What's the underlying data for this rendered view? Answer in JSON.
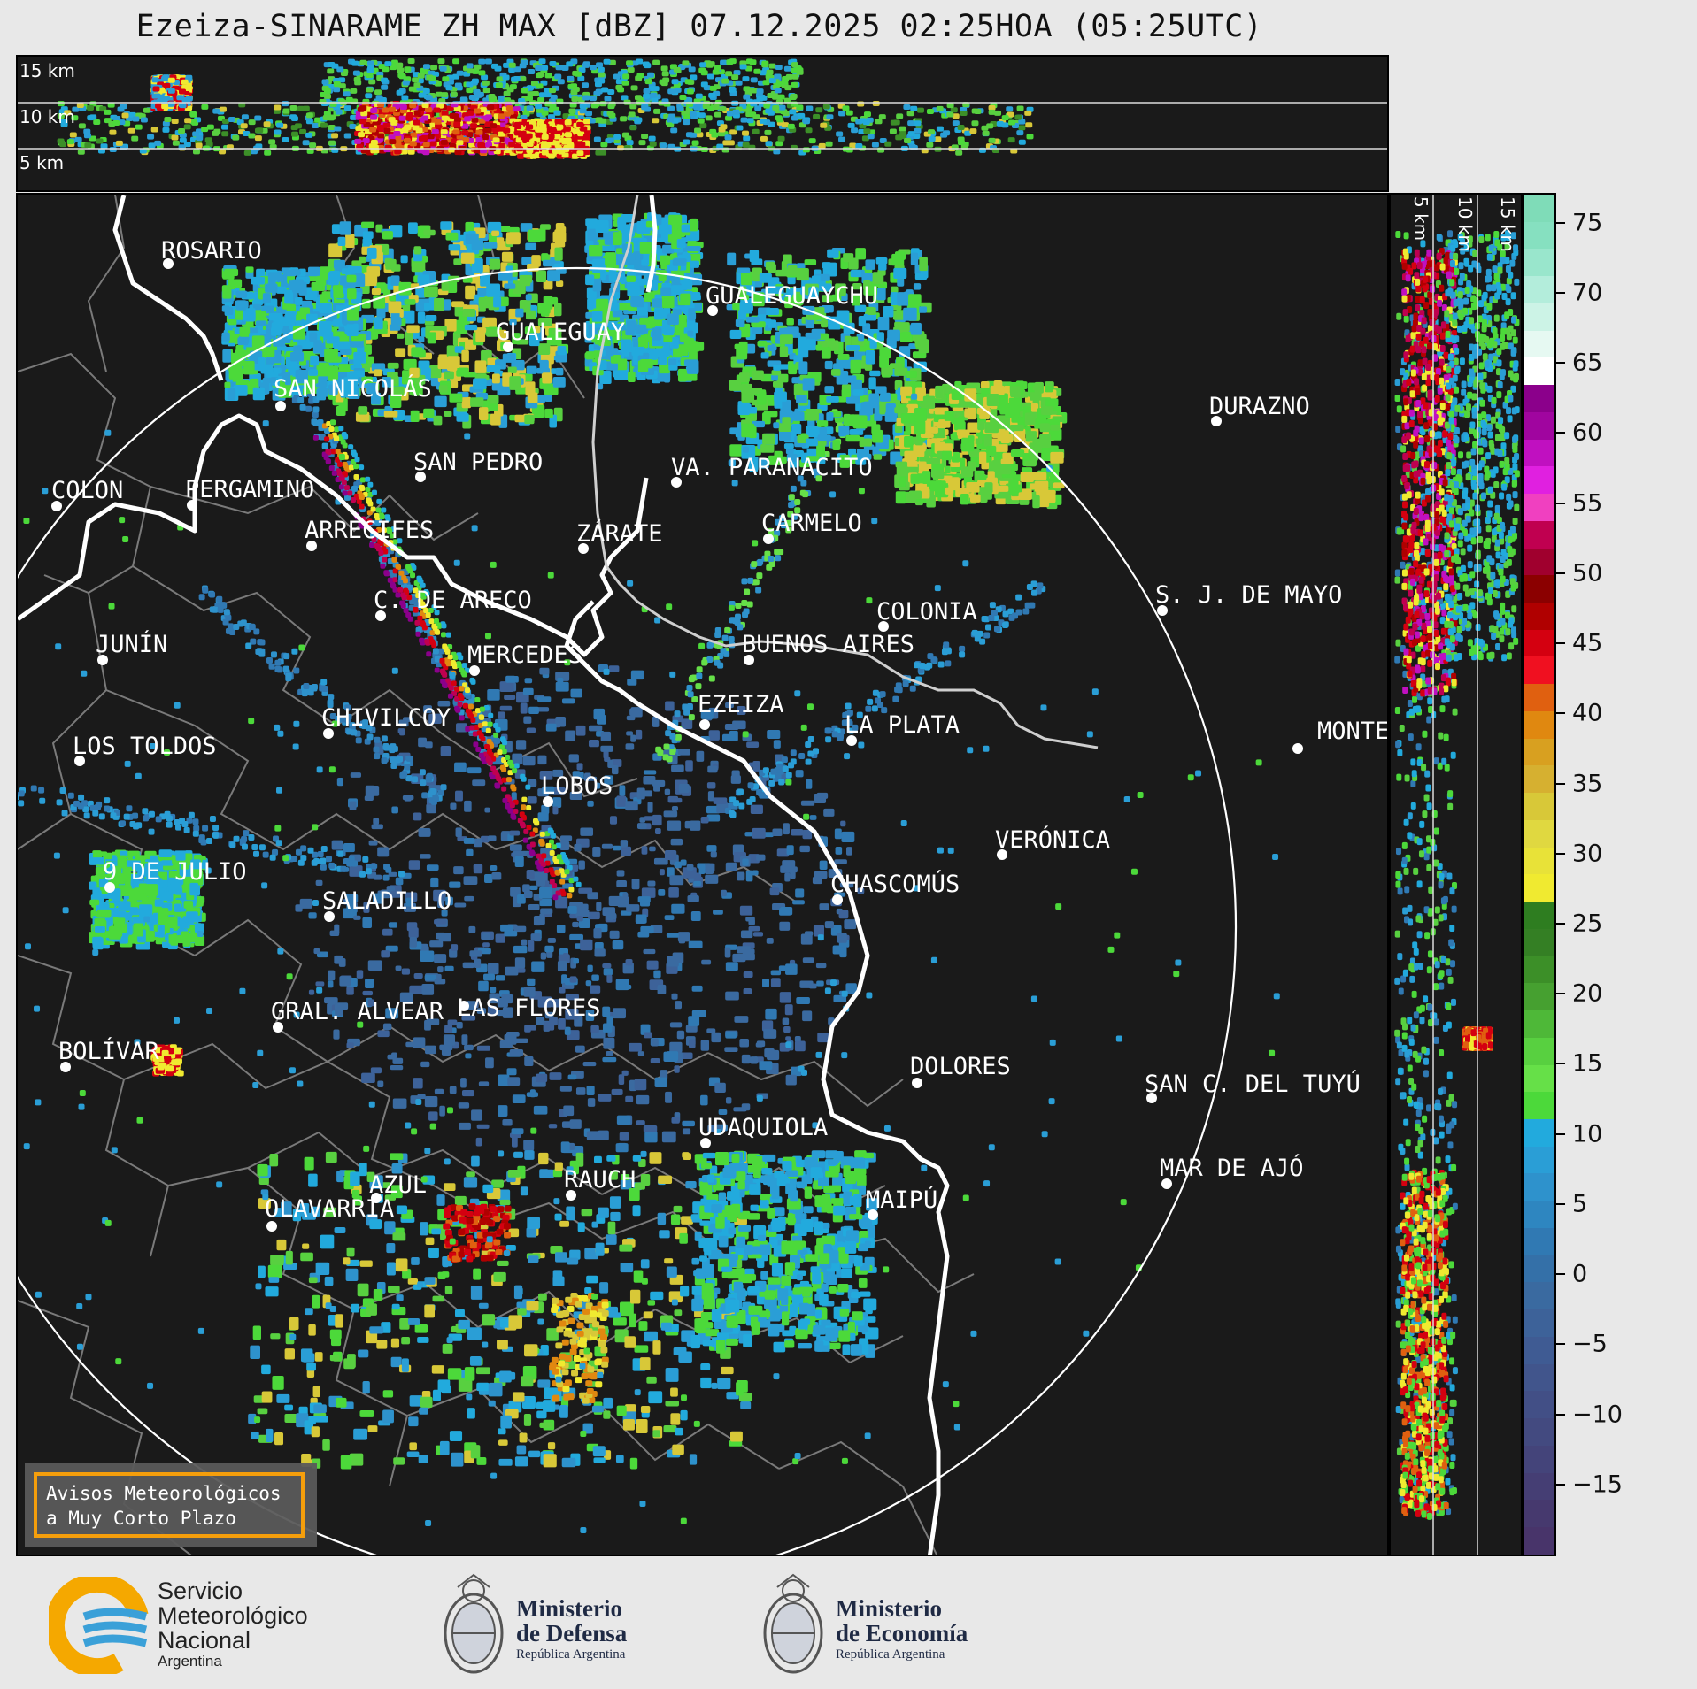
{
  "title": "Ezeiza-SINARAME ZH MAX [dBZ] 07.12.2025 02:25HOA (05:25UTC)",
  "top_altitude_labels": [
    "15 km",
    "10 km",
    "5 km"
  ],
  "side_altitude_labels": [
    "5 km",
    "10 km",
    "15 km"
  ],
  "colorbar": {
    "unit": "dBZ",
    "ticks": [
      "75",
      "70",
      "65",
      "60",
      "55",
      "50",
      "45",
      "40",
      "35",
      "30",
      "25",
      "20",
      "15",
      "10",
      "5",
      "0",
      "−5",
      "−10",
      "−15"
    ],
    "tick_values": [
      75,
      70,
      65,
      60,
      55,
      50,
      45,
      40,
      35,
      30,
      25,
      20,
      15,
      10,
      5,
      0,
      -5,
      -10,
      -15
    ],
    "range": [
      -20,
      77
    ],
    "colors_top_to_bottom": [
      "#7fdcb8",
      "#86e0c0",
      "#99e6cc",
      "#b3eddb",
      "#ccf3e6",
      "#e6f9f2",
      "#ffffff",
      "#8b008b",
      "#a0059f",
      "#c010c0",
      "#e020e0",
      "#f040c0",
      "#c00050",
      "#a0002e",
      "#8b0000",
      "#b00000",
      "#d40010",
      "#f01020",
      "#e06010",
      "#e08810",
      "#d8a020",
      "#d6b030",
      "#d8c838",
      "#e0d840",
      "#e8e238",
      "#f0ea30",
      "#2e7d20",
      "#347f24",
      "#3c8f28",
      "#46a030",
      "#4eb838",
      "#58d040",
      "#66e048",
      "#4cd93a",
      "#22aadd",
      "#2a9ed6",
      "#2e92cc",
      "#2e86c0",
      "#3079b3",
      "#3470a8",
      "#3a6aa0",
      "#3d6299",
      "#3f5b93",
      "#41558c",
      "#424f86",
      "#434a80",
      "#44447a",
      "#453e74",
      "#46396e",
      "#48346a"
    ]
  },
  "cities": [
    {
      "name": "ROSARIO",
      "dot": true
    },
    {
      "name": "GUALEGUAYCHU",
      "dot": true
    },
    {
      "name": "GUALEGUAY",
      "dot": true
    },
    {
      "name": "SAN NICOLÁS",
      "dot": true
    },
    {
      "name": "DURAZNO",
      "dot": true
    },
    {
      "name": "SAN PEDRO",
      "dot": true
    },
    {
      "name": "VA. PARANACITO",
      "dot": true
    },
    {
      "name": "COLON",
      "dot": true
    },
    {
      "name": "PERGAMINO",
      "dot": true
    },
    {
      "name": "CARMELO",
      "dot": true
    },
    {
      "name": "ARRECIFES",
      "dot": true
    },
    {
      "name": "ZÁRATE",
      "dot": true
    },
    {
      "name": "C. DE ARECO",
      "dot": true
    },
    {
      "name": "S. J. DE MAYO",
      "dot": true
    },
    {
      "name": "COLONIA",
      "dot": true
    },
    {
      "name": "JUNÍN",
      "dot": true
    },
    {
      "name": "BUENOS AIRES",
      "dot": true
    },
    {
      "name": "MERCEDES",
      "dot": true
    },
    {
      "name": "EZEIZA",
      "dot": true
    },
    {
      "name": "MONTEVIDEO",
      "dot": true
    },
    {
      "name": "CHIVILCOY",
      "dot": true
    },
    {
      "name": "LA PLATA",
      "dot": true
    },
    {
      "name": "LOS TOLDOS",
      "dot": true
    },
    {
      "name": "LOBOS",
      "dot": true
    },
    {
      "name": "VERÓNICA",
      "dot": true
    },
    {
      "name": "9 DE JULIO",
      "dot": true
    },
    {
      "name": "CHASCOMÚS",
      "dot": true
    },
    {
      "name": "SALADILLO",
      "dot": true
    },
    {
      "name": "GRAL. ALVEAR",
      "dot": true
    },
    {
      "name": "LAS FLORES",
      "dot": true
    },
    {
      "name": "BOLÍVAR",
      "dot": true
    },
    {
      "name": "DOLORES",
      "dot": true
    },
    {
      "name": "SAN C. DEL TUYÚ",
      "dot": true
    },
    {
      "name": "UDAQUIOLA",
      "dot": true
    },
    {
      "name": "MAR DE AJÓ",
      "dot": true
    },
    {
      "name": "AZUL",
      "dot": true
    },
    {
      "name": "RAUCH",
      "dot": true
    },
    {
      "name": "MAIPÚ",
      "dot": true
    },
    {
      "name": "OLAVARRÍA",
      "dot": true
    }
  ],
  "warning": {
    "line1": "Avisos Meteorológicos",
    "line2": "a Muy Corto Plazo"
  },
  "logos": {
    "smn": {
      "line1": "Servicio",
      "line2": "Meteorológico",
      "line3": "Nacional",
      "line4": "Argentina"
    },
    "defensa": {
      "line1": "Ministerio",
      "line2": "de Defensa",
      "line3": "República Argentina"
    },
    "economia": {
      "line1": "Ministerio",
      "line2": "de Economía",
      "line3": "República Argentina"
    }
  }
}
